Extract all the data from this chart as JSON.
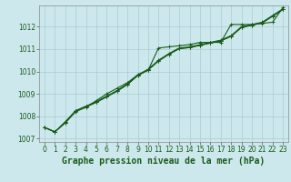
{
  "title": "Graphe pression niveau de la mer (hPa)",
  "background_color": "#cce8ec",
  "grid_color": "#aaccd4",
  "line_color": "#1a5c1a",
  "x_values": [
    0,
    1,
    2,
    3,
    4,
    5,
    6,
    7,
    8,
    9,
    10,
    11,
    12,
    13,
    14,
    15,
    16,
    17,
    18,
    19,
    20,
    21,
    22,
    23
  ],
  "series1": [
    1007.5,
    1007.3,
    1007.7,
    1008.2,
    1008.4,
    1008.7,
    1009.0,
    1009.25,
    1009.5,
    1009.85,
    1010.05,
    1011.05,
    1011.1,
    1011.15,
    1011.2,
    1011.3,
    1011.3,
    1011.3,
    1012.1,
    1012.1,
    1012.1,
    1012.15,
    1012.2,
    1012.85
  ],
  "series2": [
    1007.5,
    1007.3,
    1007.75,
    1008.25,
    1008.45,
    1008.65,
    1008.9,
    1009.15,
    1009.45,
    1009.85,
    1010.1,
    1010.5,
    1010.8,
    1011.05,
    1011.1,
    1011.2,
    1011.3,
    1011.4,
    1011.6,
    1012.0,
    1012.1,
    1012.2,
    1012.5,
    1012.8
  ],
  "series3": [
    1007.5,
    1007.3,
    1007.72,
    1008.22,
    1008.42,
    1008.62,
    1008.87,
    1009.12,
    1009.42,
    1009.82,
    1010.07,
    1010.47,
    1010.77,
    1011.02,
    1011.07,
    1011.17,
    1011.27,
    1011.37,
    1011.57,
    1011.97,
    1012.07,
    1012.17,
    1012.47,
    1012.77
  ],
  "series4": [
    1007.5,
    1007.3,
    1007.72,
    1008.22,
    1008.42,
    1008.62,
    1008.87,
    1009.12,
    1009.42,
    1009.82,
    1010.07,
    1010.47,
    1010.77,
    1011.02,
    1011.07,
    1011.17,
    1011.27,
    1011.37,
    1011.57,
    1011.97,
    1012.07,
    1012.17,
    1012.47,
    1012.77
  ],
  "ylim": [
    1006.85,
    1012.95
  ],
  "yticks": [
    1007,
    1008,
    1009,
    1010,
    1011,
    1012
  ],
  "xlim": [
    -0.5,
    23.5
  ],
  "marker": "+",
  "marker_size": 3,
  "line_width": 0.8,
  "title_fontsize": 7,
  "tick_fontsize": 5.5
}
